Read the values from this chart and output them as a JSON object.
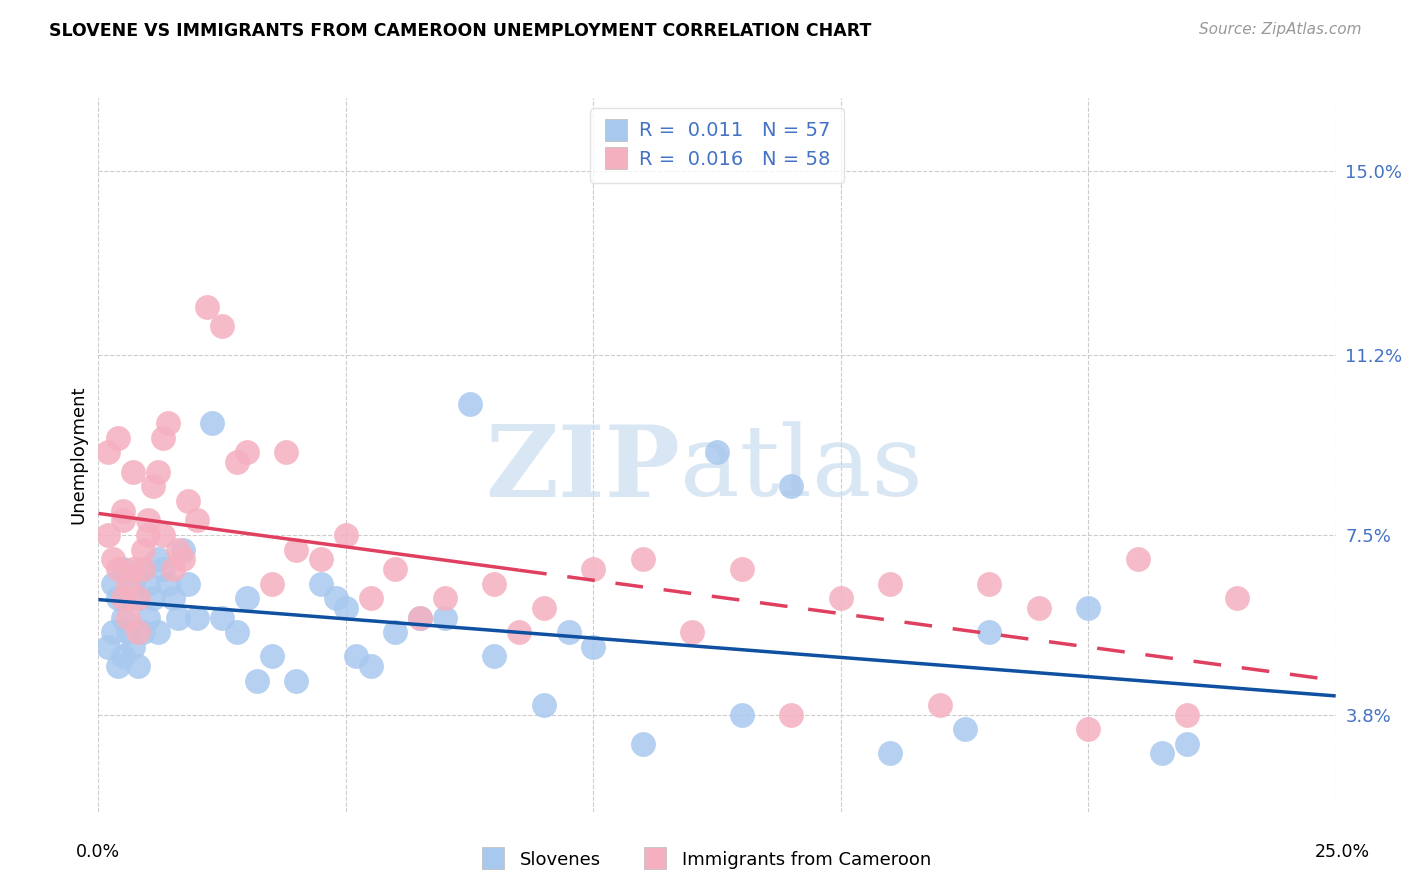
{
  "title": "SLOVENE VS IMMIGRANTS FROM CAMEROON UNEMPLOYMENT CORRELATION CHART",
  "source": "Source: ZipAtlas.com",
  "ylabel": "Unemployment",
  "ytick_values": [
    3.8,
    7.5,
    11.2,
    15.0
  ],
  "ytick_labels": [
    "3.8%",
    "7.5%",
    "11.2%",
    "15.0%"
  ],
  "xmin": 0.0,
  "xmax": 25.0,
  "ymin": 1.8,
  "ymax": 16.5,
  "legend_line1": "R =  0.011   N = 57",
  "legend_line2": "R =  0.016   N = 58",
  "legend_label1": "Slovenes",
  "legend_label2": "Immigrants from Cameroon",
  "color_blue": "#A8C8EE",
  "color_pink": "#F5B0C0",
  "color_blue_line": "#1050A0",
  "color_pink_line": "#E04060",
  "watermark_zip": "ZIP",
  "watermark_atlas": "atlas",
  "grid_color": "#CCCCCC",
  "slovene_x": [
    0.2,
    0.3,
    0.3,
    0.4,
    0.4,
    0.5,
    0.5,
    0.5,
    0.6,
    0.7,
    0.7,
    0.8,
    0.8,
    0.9,
    0.9,
    1.0,
    1.0,
    1.1,
    1.2,
    1.2,
    1.3,
    1.4,
    1.5,
    1.6,
    1.7,
    1.8,
    2.0,
    2.3,
    2.5,
    2.8,
    3.0,
    3.5,
    4.0,
    4.5,
    5.0,
    5.5,
    6.0,
    7.0,
    8.0,
    9.0,
    10.0,
    11.0,
    12.5,
    13.0,
    14.0,
    16.0,
    17.5,
    18.0,
    20.0,
    22.0,
    7.5,
    5.2,
    3.2,
    4.8,
    6.5,
    9.5,
    21.5
  ],
  "slovene_y": [
    5.2,
    5.5,
    6.5,
    4.8,
    6.2,
    5.0,
    5.8,
    6.8,
    5.5,
    5.2,
    6.5,
    4.8,
    6.2,
    5.5,
    6.8,
    5.8,
    6.5,
    6.2,
    7.0,
    5.5,
    6.8,
    6.5,
    6.2,
    5.8,
    7.2,
    6.5,
    5.8,
    9.8,
    5.8,
    5.5,
    6.2,
    5.0,
    4.5,
    6.5,
    6.0,
    4.8,
    5.5,
    5.8,
    5.0,
    4.0,
    5.2,
    3.2,
    9.2,
    3.8,
    8.5,
    3.0,
    3.5,
    5.5,
    6.0,
    3.2,
    10.2,
    5.0,
    4.5,
    6.2,
    5.8,
    5.5,
    3.0
  ],
  "cameroon_x": [
    0.2,
    0.2,
    0.3,
    0.4,
    0.4,
    0.5,
    0.5,
    0.5,
    0.6,
    0.6,
    0.7,
    0.7,
    0.8,
    0.8,
    0.9,
    1.0,
    1.0,
    1.1,
    1.2,
    1.3,
    1.4,
    1.5,
    1.6,
    1.7,
    1.8,
    2.0,
    2.2,
    2.5,
    3.0,
    3.5,
    4.0,
    4.5,
    5.0,
    5.5,
    6.0,
    7.0,
    8.0,
    9.0,
    10.0,
    11.0,
    12.0,
    13.0,
    14.0,
    15.0,
    16.0,
    17.0,
    18.0,
    19.0,
    20.0,
    21.0,
    22.0,
    23.0,
    0.9,
    1.3,
    2.8,
    3.8,
    6.5,
    8.5
  ],
  "cameroon_y": [
    7.5,
    9.2,
    7.0,
    6.8,
    9.5,
    6.2,
    8.0,
    7.8,
    5.8,
    6.5,
    8.8,
    6.8,
    5.5,
    6.2,
    7.2,
    7.8,
    7.5,
    8.5,
    8.8,
    9.5,
    9.8,
    6.8,
    7.2,
    7.0,
    8.2,
    7.8,
    12.2,
    11.8,
    9.2,
    6.5,
    7.2,
    7.0,
    7.5,
    6.2,
    6.8,
    6.2,
    6.5,
    6.0,
    6.8,
    7.0,
    5.5,
    6.8,
    3.8,
    6.2,
    6.5,
    4.0,
    6.5,
    6.0,
    3.5,
    7.0,
    3.8,
    6.2,
    6.8,
    7.5,
    9.0,
    9.2,
    5.8,
    5.5
  ]
}
